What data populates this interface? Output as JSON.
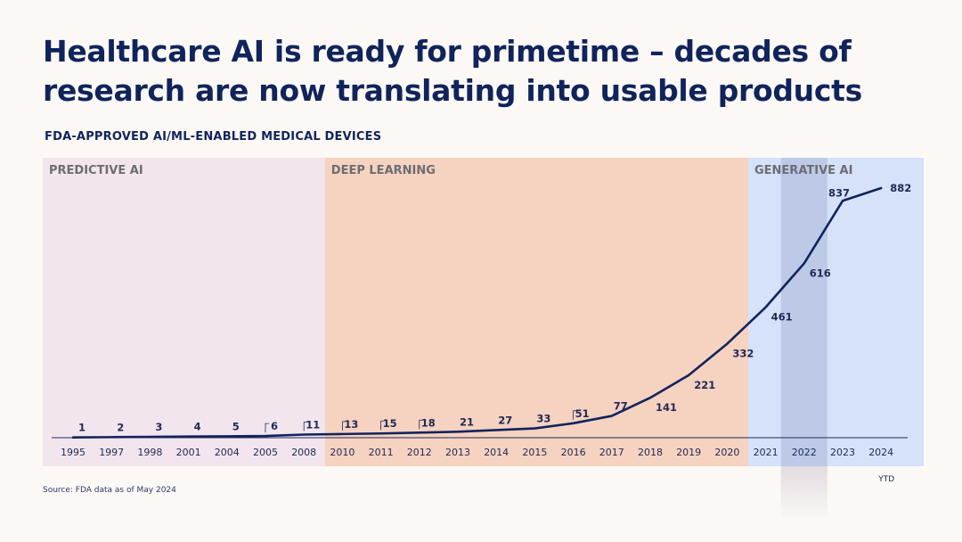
{
  "title": "Healthcare AI is ready for primetime – decades of research are now translating into usable products",
  "subtitle": "FDA-APPROVED AI/ML-ENABLED MEDICAL DEVICES",
  "source": "Source: FDA data as of May 2024",
  "colors": {
    "title": "#10245c",
    "line": "#10245c",
    "predictive_band": "#f2e5ee",
    "deep_learning_band": "#f6d2c0",
    "generative_band": "#d6e1fa",
    "highlight_column": "#bdc9e6"
  },
  "chart_data": {
    "type": "line",
    "title": "FDA-APPROVED AI/ML-ENABLED MEDICAL DEVICES",
    "categories": [
      "1995",
      "1997",
      "1998",
      "2001",
      "2004",
      "2005",
      "2008",
      "2010",
      "2011",
      "2012",
      "2013",
      "2014",
      "2015",
      "2016",
      "2017",
      "2018",
      "2019",
      "2020",
      "2021",
      "2022",
      "2023",
      "2024"
    ],
    "values": [
      1,
      2,
      3,
      4,
      5,
      6,
      11,
      13,
      15,
      18,
      21,
      27,
      33,
      51,
      77,
      141,
      221,
      332,
      461,
      616,
      837,
      882
    ],
    "ylim": [
      0,
      900
    ],
    "grid": false,
    "legend": "none",
    "eras": [
      {
        "label": "PREDICTIVE AI",
        "from": "1995",
        "to": "2008"
      },
      {
        "label": "DEEP LEARNING",
        "from": "2010",
        "to": "2020"
      },
      {
        "label": "GENERATIVE AI",
        "from": "2021",
        "to": "2024"
      }
    ],
    "highlight": "2022",
    "annotations": [
      {
        "category": "2024",
        "text": "YTD"
      }
    ]
  }
}
